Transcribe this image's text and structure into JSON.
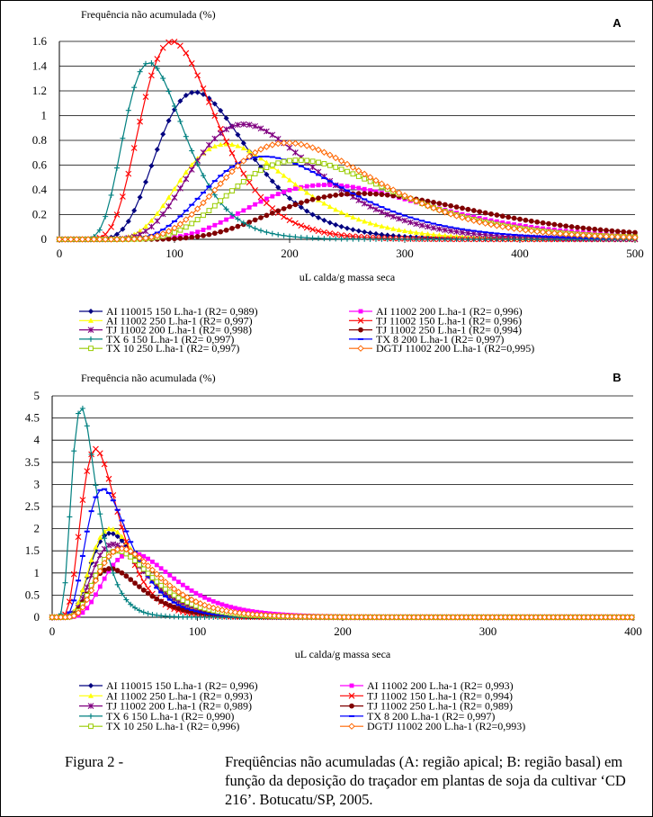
{
  "figure": {
    "caption_prefix": "Figura 2 -",
    "caption_first": "Freqüências não acumuladas (A: região apical; B: região basal) em",
    "caption_rest": "função da deposição do traçador em plantas de soja da cultivar ‘CD 216’. Botucatu/SP, 2005."
  },
  "chart_data": [
    {
      "id": "A",
      "panel_label": "A",
      "type": "line",
      "ylabel": "Frequência não acumulada (%)",
      "xlabel": "uL calda/g massa seca",
      "xlim": [
        0,
        500
      ],
      "ylim": [
        0,
        1.6
      ],
      "xticks": [
        "0",
        "100",
        "200",
        "300",
        "400",
        "500"
      ],
      "yticks": [
        "0",
        "0.2",
        "0.4",
        "0.6",
        "0.8",
        "1",
        "1.2",
        "1.4",
        "1.6"
      ],
      "grid": "horizontal",
      "legend_position": "bottom",
      "series": [
        {
          "name": "AI 110015 150 L.ha-1 (R2= 0,989)",
          "color": "#000080",
          "marker": "diamond",
          "peak_x": 118,
          "peak_y": 1.19
        },
        {
          "name": "AI 11002 200 L.ha-1 (R2= 0,996)",
          "color": "#ff00ff",
          "marker": "square",
          "peak_x": 232,
          "peak_y": 0.44
        },
        {
          "name": "AI 11002 250 L.ha-1 (R2= 0,997)",
          "color": "#ffff00",
          "marker": "triangle",
          "peak_x": 145,
          "peak_y": 0.77
        },
        {
          "name": "TJ 11002 150 L.ha-1 (R2= 0,996)",
          "color": "#ff0000",
          "marker": "x",
          "peak_x": 98,
          "peak_y": 1.6
        },
        {
          "name": "TJ 11002 200 L.ha-1 (R2= 0,998)",
          "color": "#800080",
          "marker": "star",
          "peak_x": 160,
          "peak_y": 0.93
        },
        {
          "name": "TJ 11002 250 L.ha-1 (R2= 0,994)",
          "color": "#800000",
          "marker": "circle",
          "peak_x": 262,
          "peak_y": 0.37
        },
        {
          "name": "TX 6 150 L.ha-1 (R2= 0,997)",
          "color": "#008080",
          "marker": "plus",
          "peak_x": 78,
          "peak_y": 1.43
        },
        {
          "name": "TX 8 200 L.ha-1 (R2= 0,997)",
          "color": "#0000ff",
          "marker": "dash",
          "peak_x": 178,
          "peak_y": 0.67
        },
        {
          "name": "TX 10 250 L.ha-1 (R2= 0,997)",
          "color": "#99cc00",
          "marker": "opensquare",
          "peak_x": 208,
          "peak_y": 0.64
        },
        {
          "name": "DGTJ 11002 200 L.ha-1 (R2=0,995)",
          "color": "#ff6600",
          "marker": "opendiamond",
          "peak_x": 198,
          "peak_y": 0.78
        }
      ]
    },
    {
      "id": "B",
      "panel_label": "B",
      "type": "line",
      "ylabel": "Frequência não acumulada (%)",
      "xlabel": "uL calda/g massa seca",
      "xlim": [
        0,
        400
      ],
      "ylim": [
        0,
        5
      ],
      "xticks": [
        "0",
        "100",
        "200",
        "300",
        "400"
      ],
      "yticks": [
        "0",
        "0.5",
        "1",
        "1.5",
        "2",
        "2.5",
        "3",
        "3.5",
        "4",
        "4.5",
        "5"
      ],
      "grid": "horizontal",
      "legend_position": "bottom",
      "series": [
        {
          "name": "AI 110015 150 L.ha-1 (R2= 0,996)",
          "color": "#000080",
          "marker": "diamond",
          "peak_x": 40,
          "peak_y": 1.9
        },
        {
          "name": "AI 11002 200 L.ha-1 (R2= 0,993)",
          "color": "#ff00ff",
          "marker": "square",
          "peak_x": 55,
          "peak_y": 1.45
        },
        {
          "name": "AI 11002 250 L.ha-1 (R2= 0,993)",
          "color": "#ffff00",
          "marker": "triangle",
          "peak_x": 40,
          "peak_y": 2.0
        },
        {
          "name": "TJ 11002 150 L.ha-1 (R2= 0,994)",
          "color": "#ff0000",
          "marker": "x",
          "peak_x": 30,
          "peak_y": 3.8
        },
        {
          "name": "TJ 11002 200 L.ha-1 (R2= 0,989)",
          "color": "#800080",
          "marker": "star",
          "peak_x": 42,
          "peak_y": 1.65
        },
        {
          "name": "TJ 11002 250 L.ha-1 (R2= 0,989)",
          "color": "#800000",
          "marker": "circle",
          "peak_x": 40,
          "peak_y": 1.1
        },
        {
          "name": "TX 6 150 L.ha-1 (R2= 0,990)",
          "color": "#008080",
          "marker": "plus",
          "peak_x": 20,
          "peak_y": 4.75
        },
        {
          "name": "TX 8 200 L.ha-1 (R2= 0,997)",
          "color": "#0000ff",
          "marker": "dash",
          "peak_x": 35,
          "peak_y": 2.9
        },
        {
          "name": "TX 10 250 L.ha-1 (R2= 0,996)",
          "color": "#99cc00",
          "marker": "opensquare",
          "peak_x": 45,
          "peak_y": 1.5
        },
        {
          "name": "DGTJ 11002 200 L.ha-1 (R2=0,993)",
          "color": "#ff6600",
          "marker": "opendiamond",
          "peak_x": 48,
          "peak_y": 1.55
        }
      ]
    }
  ]
}
